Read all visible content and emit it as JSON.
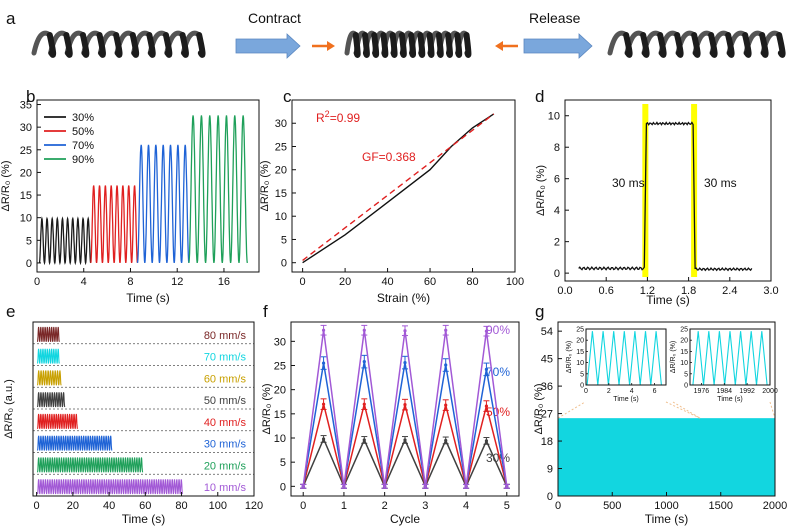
{
  "panel_letters": [
    "a",
    "b",
    "c",
    "d",
    "e",
    "f",
    "g"
  ],
  "colors": {
    "black": "#1a1a1a",
    "red": "#e02020",
    "blue": "#1f63d6",
    "green": "#1fa05a",
    "cyan": "#12d6e0",
    "purple": "#a259d6",
    "yellow": "#ffff00",
    "orange": "#f0701e",
    "arrow_blue": "#7aa7dc",
    "dark_red": "#b01818",
    "teal_label": "#18b5c8",
    "gold_label": "#c8a000",
    "gray_label": "#404040",
    "peach": "#f0c090"
  },
  "panel_a": {
    "contract_label": "Contract",
    "release_label": "Release"
  },
  "chart_data": [
    {
      "panel": "b",
      "type": "line",
      "xlabel": "Time (s)",
      "ylabel": "ΔR/R₀ (%)",
      "xlim": [
        0,
        19
      ],
      "ylim": [
        -2,
        36
      ],
      "x_ticks": [
        0,
        4,
        8,
        12,
        16
      ],
      "y_ticks": [
        0,
        5,
        10,
        15,
        20,
        25,
        30,
        35
      ],
      "series": [
        {
          "name": "30%",
          "color": "#1a1a1a",
          "t_start": 0.2,
          "t_end": 4.6,
          "amplitude": 9.8,
          "cycles": 10
        },
        {
          "name": "50%",
          "color": "#e02020",
          "t_start": 4.6,
          "t_end": 8.6,
          "amplitude": 17.1,
          "cycles": 8
        },
        {
          "name": "70%",
          "color": "#1f63d6",
          "t_start": 8.6,
          "t_end": 13.0,
          "amplitude": 26.1,
          "cycles": 7
        },
        {
          "name": "90%",
          "color": "#1fa05a",
          "t_start": 13.0,
          "t_end": 18.0,
          "amplitude": 32.6,
          "cycles": 7
        }
      ]
    },
    {
      "panel": "c",
      "type": "line",
      "xlabel": "Strain (%)",
      "ylabel": "ΔR/R₀ (%)",
      "xlim": [
        -5,
        100
      ],
      "ylim": [
        -2,
        35
      ],
      "x_ticks": [
        0,
        20,
        40,
        60,
        80,
        100
      ],
      "y_ticks": [
        0,
        5,
        10,
        15,
        20,
        25,
        30
      ],
      "measured": {
        "x": [
          0,
          20,
          40,
          60,
          70,
          80,
          90
        ],
        "y": [
          0,
          6,
          13,
          20,
          25,
          29,
          32
        ]
      },
      "fit": {
        "x": [
          0,
          90
        ],
        "y": [
          0.5,
          32
        ]
      },
      "r2_prefix": "R",
      "r2_sup": "2",
      "r2_value": "=0.99",
      "gf_label": "GF=0.368"
    },
    {
      "panel": "d",
      "type": "line",
      "xlabel": "Time (s)",
      "ylabel": "ΔR/R₀ (%)",
      "xlim": [
        0,
        3.0
      ],
      "ylim": [
        -0.5,
        11
      ],
      "x_ticks": [
        0.0,
        0.6,
        1.2,
        1.8,
        2.4,
        3.0
      ],
      "x_tick_labels": [
        "0.0",
        "0.6",
        "1.2",
        "1.8",
        "2.4",
        "3.0"
      ],
      "y_ticks": [
        0,
        2,
        4,
        6,
        8,
        10
      ],
      "baseline": 0.3,
      "plateau": 9.5,
      "t_rise": 1.17,
      "t_fall": 1.88,
      "t_start": 0.2,
      "t_end": 2.72,
      "rise_label": "30 ms",
      "fall_label": "30 ms"
    },
    {
      "panel": "e",
      "type": "line",
      "xlabel": "Time (s)",
      "ylabel": "ΔR/R₀ (a.u.)",
      "xlim": [
        -2,
        120
      ],
      "x_ticks": [
        0,
        20,
        40,
        60,
        80,
        100,
        120
      ],
      "series": [
        {
          "name": "80 mm/s",
          "color": "#7a2828",
          "duration": 12,
          "cycles": 10
        },
        {
          "name": "70 mm/s",
          "color": "#12d6e0",
          "duration": 12,
          "cycles": 10
        },
        {
          "name": "60 mm/s",
          "color": "#c8a000",
          "duration": 13,
          "cycles": 10
        },
        {
          "name": "50 mm/s",
          "color": "#404040",
          "duration": 15,
          "cycles": 10
        },
        {
          "name": "40 mm/s",
          "color": "#e02020",
          "duration": 22,
          "cycles": 10
        },
        {
          "name": "30 mm/s",
          "color": "#1f63d6",
          "duration": 41,
          "cycles": 10
        },
        {
          "name": "20 mm/s",
          "color": "#1fa05a",
          "duration": 58,
          "cycles": 10
        },
        {
          "name": "10 mm/s",
          "color": "#a259d6",
          "duration": 80,
          "cycles": 10
        }
      ]
    },
    {
      "panel": "f",
      "type": "line",
      "xlabel": "Cycle",
      "ylabel": "ΔR/R₀ (%)",
      "xlim": [
        -0.3,
        5.3
      ],
      "ylim": [
        -2,
        34
      ],
      "x_ticks": [
        0,
        1,
        2,
        3,
        4,
        5
      ],
      "y_ticks": [
        0,
        5,
        10,
        15,
        20,
        25,
        30
      ],
      "x": [
        0,
        0.5,
        1,
        1.5,
        2,
        2.5,
        3,
        3.5,
        4,
        4.5,
        5
      ],
      "series": [
        {
          "name": "30%",
          "color": "#404040",
          "peaks": [
            9.8,
            9.6,
            9.6,
            9.5,
            9.4
          ],
          "error": 0.7
        },
        {
          "name": "50%",
          "color": "#e02020",
          "peaks": [
            17,
            17,
            16.9,
            16.8,
            16.6
          ],
          "error": 1.1
        },
        {
          "name": "70%",
          "color": "#1f63d6",
          "peaks": [
            25.5,
            25.8,
            25.6,
            25.1,
            24.2
          ],
          "error": 1.3
        },
        {
          "name": "90%",
          "color": "#a259d6",
          "peaks": [
            32.3,
            32.3,
            32.2,
            32.3,
            32.1
          ],
          "error": 1.0
        }
      ]
    },
    {
      "panel": "g",
      "type": "line",
      "xlabel": "Time (s)",
      "ylabel": "ΔR/R₀ (%)",
      "xlim": [
        0,
        2000
      ],
      "ylim": [
        0,
        57
      ],
      "x_ticks": [
        0,
        500,
        1000,
        1500,
        2000
      ],
      "y_ticks": [
        0,
        9,
        18,
        27,
        36,
        45,
        54
      ],
      "amplitude": 25.5,
      "color": "#12d6e0",
      "inset_left": {
        "xlabel": "Time (s)",
        "ylabel": "ΔR/R₀ (%)",
        "xlim": [
          0,
          7
        ],
        "ylim": [
          0,
          25
        ],
        "x_ticks": [
          0,
          2,
          4,
          6
        ],
        "y_ticks": [
          0,
          5,
          10,
          15,
          20,
          25
        ],
        "t_start": 0.1,
        "t_end": 6.6,
        "cycles": 7,
        "amplitude": 24
      },
      "inset_right": {
        "xlabel": "Time (s)",
        "ylabel": "ΔR/R₀ (%)",
        "xlim": [
          1972,
          2000
        ],
        "ylim": [
          0,
          25
        ],
        "x_ticks": [
          1976,
          1984,
          1992,
          2000
        ],
        "y_ticks": [
          0,
          5,
          10,
          15,
          20,
          25
        ],
        "t_start": 1973,
        "t_end": 1999,
        "cycles": 7,
        "amplitude": 24
      }
    }
  ]
}
